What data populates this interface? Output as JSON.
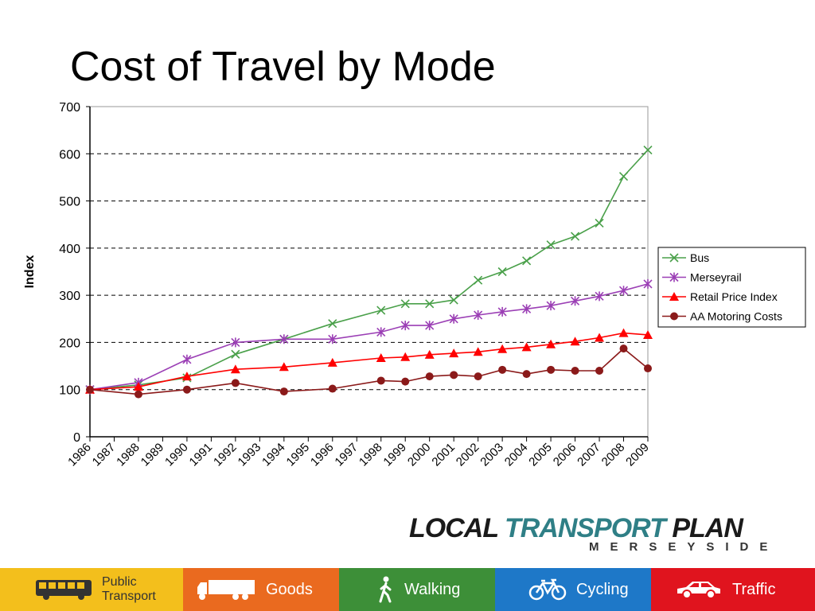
{
  "slide": {
    "title": "Cost of Travel by Mode"
  },
  "chart_data": {
    "type": "line",
    "title": "",
    "xlabel": "",
    "ylabel": "Index",
    "ylim": [
      0,
      700
    ],
    "yticks": [
      0,
      100,
      200,
      300,
      400,
      500,
      600,
      700
    ],
    "categories": [
      "1986",
      "1987",
      "1988",
      "1989",
      "1990",
      "1991",
      "1992",
      "1993",
      "1994",
      "1995",
      "1996",
      "1997",
      "1998",
      "1999",
      "2000",
      "2001",
      "2002",
      "2003",
      "2004",
      "2005",
      "2006",
      "2007",
      "2008",
      "2009"
    ],
    "grid": "horizontal dashed",
    "legend": "right",
    "series": [
      {
        "name": "Bus",
        "color": "#4aa04a",
        "marker": "x",
        "points": [
          [
            1986,
            100
          ],
          [
            1988,
            110
          ],
          [
            1990,
            125
          ],
          [
            1992,
            175
          ],
          [
            1994,
            207
          ],
          [
            1996,
            240
          ],
          [
            1998,
            268
          ],
          [
            1999,
            282
          ],
          [
            2000,
            282
          ],
          [
            2001,
            290
          ],
          [
            2002,
            332
          ],
          [
            2003,
            350
          ],
          [
            2004,
            373
          ],
          [
            2005,
            407
          ],
          [
            2006,
            425
          ],
          [
            2007,
            453
          ],
          [
            2008,
            552
          ],
          [
            2009,
            608
          ]
        ]
      },
      {
        "name": "Merseyrail",
        "color": "#9b3fb5",
        "marker": "asterisk",
        "points": [
          [
            1986,
            100
          ],
          [
            1988,
            115
          ],
          [
            1990,
            164
          ],
          [
            1992,
            200
          ],
          [
            1994,
            207
          ],
          [
            1996,
            207
          ],
          [
            1998,
            222
          ],
          [
            1999,
            236
          ],
          [
            2000,
            236
          ],
          [
            2001,
            250
          ],
          [
            2002,
            258
          ],
          [
            2003,
            265
          ],
          [
            2004,
            271
          ],
          [
            2005,
            278
          ],
          [
            2006,
            288
          ],
          [
            2007,
            298
          ],
          [
            2008,
            310
          ],
          [
            2009,
            324
          ]
        ]
      },
      {
        "name": "Retail Price Index",
        "color": "#ff0000",
        "marker": "triangle",
        "points": [
          [
            1986,
            100
          ],
          [
            1988,
            106
          ],
          [
            1990,
            128
          ],
          [
            1992,
            143
          ],
          [
            1994,
            148
          ],
          [
            1996,
            157
          ],
          [
            1998,
            167
          ],
          [
            1999,
            169
          ],
          [
            2000,
            174
          ],
          [
            2001,
            177
          ],
          [
            2002,
            180
          ],
          [
            2003,
            186
          ],
          [
            2004,
            190
          ],
          [
            2005,
            196
          ],
          [
            2006,
            202
          ],
          [
            2007,
            210
          ],
          [
            2008,
            220
          ],
          [
            2009,
            216
          ]
        ]
      },
      {
        "name": "AA Motoring Costs",
        "color": "#8b1a1a",
        "marker": "circle",
        "points": [
          [
            1986,
            100
          ],
          [
            1988,
            90
          ],
          [
            1990,
            100
          ],
          [
            1992,
            114
          ],
          [
            1994,
            96
          ],
          [
            1996,
            102
          ],
          [
            1998,
            119
          ],
          [
            1999,
            117
          ],
          [
            2000,
            128
          ],
          [
            2001,
            131
          ],
          [
            2002,
            128
          ],
          [
            2003,
            142
          ],
          [
            2004,
            133
          ],
          [
            2005,
            142
          ],
          [
            2006,
            140
          ],
          [
            2007,
            140
          ],
          [
            2008,
            187
          ],
          [
            2009,
            145
          ]
        ]
      }
    ]
  },
  "logo": {
    "word1": "LOCAL ",
    "word2": "TRANSPORT",
    "word3": " PLAN",
    "subtitle": "MERSEYSIDE"
  },
  "footer": {
    "public_transport_line1": "Public",
    "public_transport_line2": "Transport",
    "goods": "Goods",
    "walking": "Walking",
    "cycling": "Cycling",
    "traffic": "Traffic"
  }
}
